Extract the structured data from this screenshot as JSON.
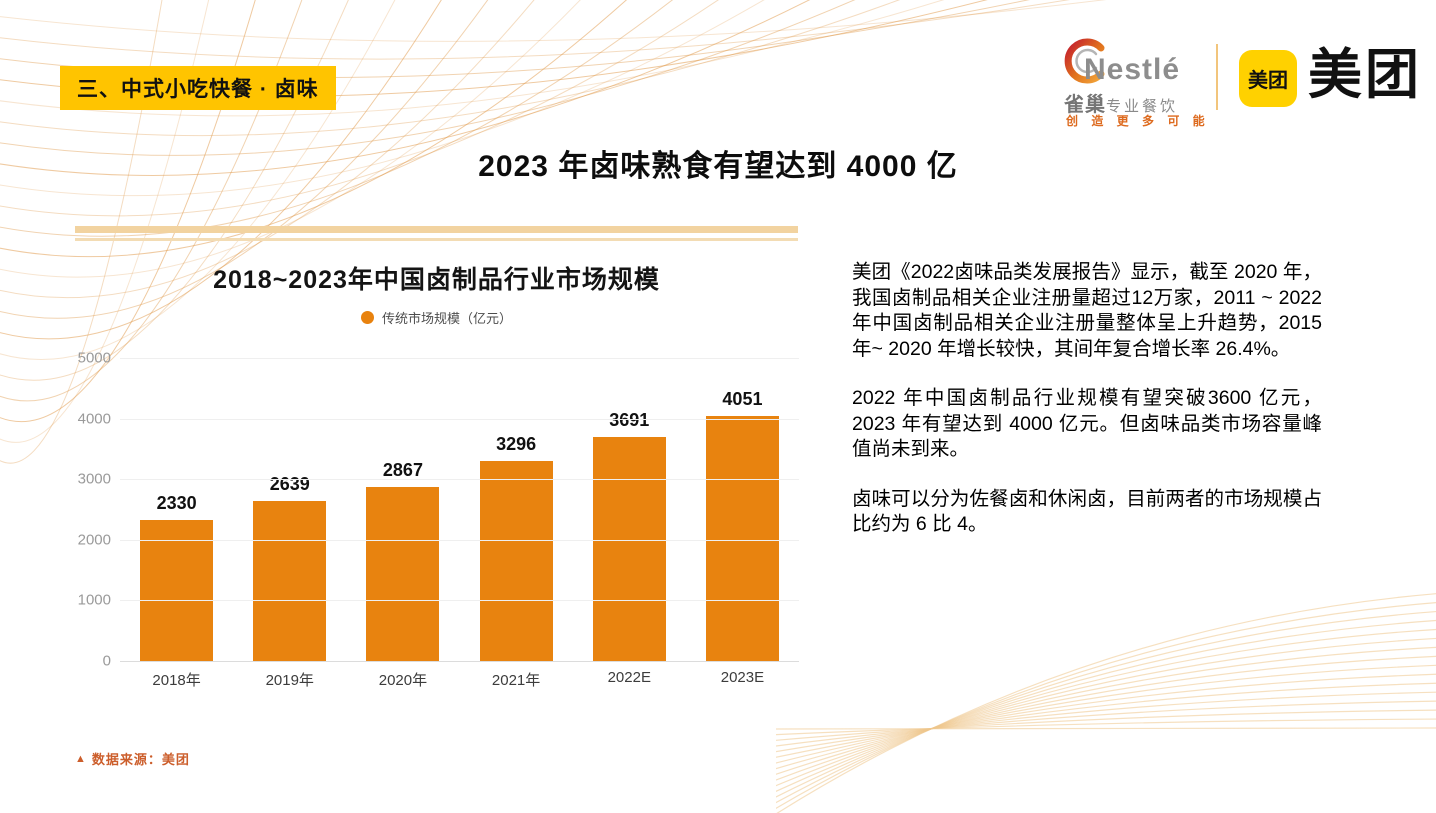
{
  "header": {
    "section_badge": {
      "label": "三、中式小吃快餐 · 卤味",
      "bg": "#FFC400"
    },
    "nestle_logo": {
      "wordmark": "Nestlé",
      "subtitle_bold": "雀巢",
      "subtitle_rest": "专业餐饮",
      "tagline": "创 造 更 多 可 能"
    },
    "meituan_logo": {
      "icon_text": "美团",
      "wordmark": "美团",
      "icon_bg": "#FFD100"
    }
  },
  "title": "2023 年卤味熟食有望达到 4000 亿",
  "chart_data": {
    "type": "bar",
    "title": "2018~2023年中国卤制品行业市场规模",
    "legend": "传统市场规模（亿元）",
    "legend_position": "top",
    "categories": [
      "2018年",
      "2019年",
      "2020年",
      "2021年",
      "2022E",
      "2023E"
    ],
    "values": [
      2330,
      2639,
      2867,
      3296,
      3691,
      4051
    ],
    "ylim": [
      0,
      5000
    ],
    "yticks": [
      0,
      1000,
      2000,
      3000,
      4000,
      5000
    ],
    "grid": true,
    "bar_color": "#E8830F",
    "xlabel": "",
    "ylabel": ""
  },
  "commentary": {
    "paragraphs": [
      "美团《2022卤味品类发展报告》显示，截至 2020 年，我国卤制品相关企业注册量超过12万家，2011 ~ 2022 年中国卤制品相关企业注册量整体呈上升趋势，2015 年~ 2020 年增长较快，其间年复合增长率 26.4%。",
      "2022 年中国卤制品行业规模有望突破3600 亿元，2023 年有望达到 4000 亿元。但卤味品类市场容量峰值尚未到来。",
      "卤味可以分为佐餐卤和休闲卤，目前两者的市场规模占比约为 6 比 4。"
    ]
  },
  "source_note": {
    "marker": "▲",
    "label": "数据来源：美团",
    "color": "#CC5E2B"
  },
  "colors": {
    "accent_orange": "#E8830F",
    "badge_yellow": "#FFC400",
    "meituan_yellow": "#FFD100",
    "rule_tan": "#F2D3A0",
    "wave_orange": "#E09A4E",
    "source_orange": "#CC5E2B"
  }
}
